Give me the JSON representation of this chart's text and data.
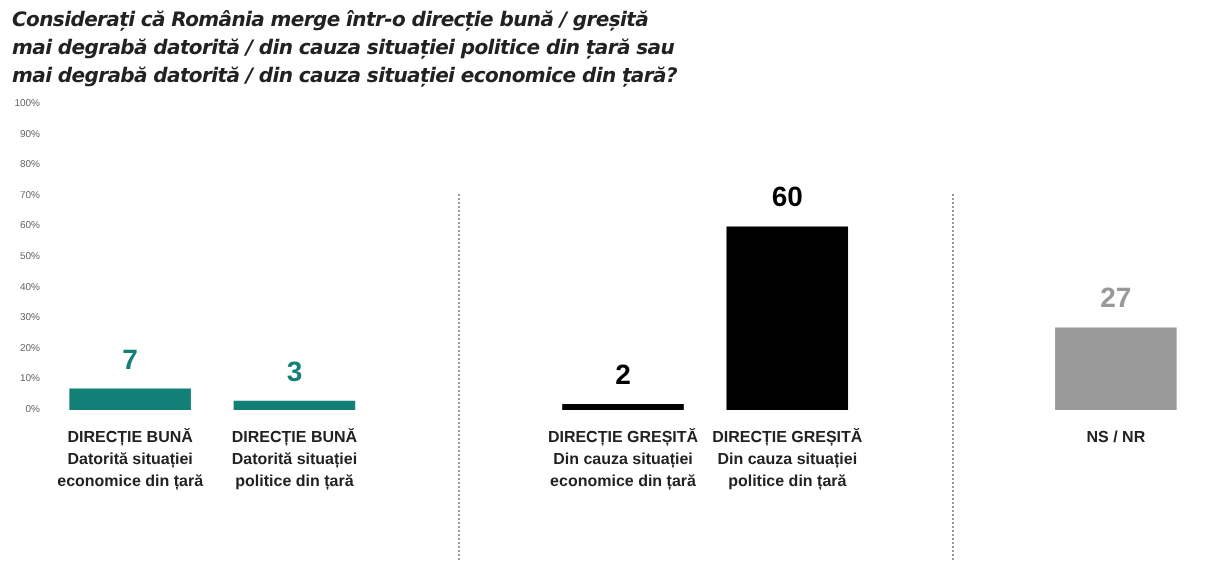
{
  "chart_data": {
    "type": "bar",
    "title": "Considerați că România merge într-o direcție bună / greșită\nmai degrabă datorită / din cauza situației politice din țară sau\nmai degrabă datorită / din cauza situației economice din țară?",
    "categories": [
      "DIRECȚIE BUNĂ\nDatorită situației\neconomice din țară",
      "DIRECȚIE BUNĂ\nDatorită situației\npolitice din țară",
      null,
      "DIRECȚIE GREȘITĂ\nDin cauza situației\neconomice din țară",
      "DIRECȚIE GREȘITĂ\nDin cauza situației\npolitice din țară",
      null,
      "NS / NR"
    ],
    "values": [
      7,
      3,
      null,
      2,
      60,
      null,
      27
    ],
    "colors": [
      "#138078",
      "#138078",
      "#000000",
      "#000000",
      "#000000",
      "#999999",
      "#999999"
    ],
    "data_labels": true,
    "ylim": [
      0,
      100
    ],
    "yticks": [
      {
        "value": 0,
        "label": "0%"
      },
      {
        "value": 10,
        "label": "10%"
      },
      {
        "value": 20,
        "label": "20%"
      },
      {
        "value": 30,
        "label": "30%"
      },
      {
        "value": 40,
        "label": "40%"
      },
      {
        "value": 50,
        "label": "50%"
      },
      {
        "value": 60,
        "label": "60%"
      },
      {
        "value": 70,
        "label": "70%"
      },
      {
        "value": 80,
        "label": "80%"
      },
      {
        "value": 90,
        "label": "90%"
      },
      {
        "value": 100,
        "label": "100%"
      }
    ],
    "tick_labels": true
  }
}
